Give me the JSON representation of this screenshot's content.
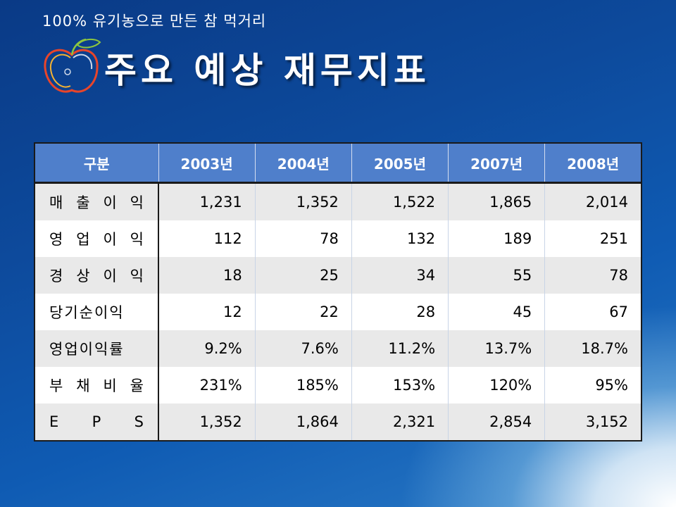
{
  "slide": {
    "subtitle": "100% 유기농으로 만든 참 먹거리",
    "title": "주요 예상 재무지표",
    "logo_icon": "apple-logo-icon"
  },
  "table": {
    "headers": [
      "구분",
      "2003년",
      "2004년",
      "2005년",
      "2007년",
      "2008년"
    ],
    "rows": [
      {
        "label": "매 출 이 익",
        "values": [
          "1,231",
          "1,352",
          "1,522",
          "1,865",
          "2,014"
        ]
      },
      {
        "label": "영 업 이 익",
        "values": [
          "112",
          "78",
          "132",
          "189",
          "251"
        ]
      },
      {
        "label": "경 상 이 익",
        "values": [
          "18",
          "25",
          "34",
          "55",
          "78"
        ]
      },
      {
        "label": "당기순이익",
        "values": [
          "12",
          "22",
          "28",
          "45",
          "67"
        ]
      },
      {
        "label": "영업이익률",
        "values": [
          "9.2%",
          "7.6%",
          "11.2%",
          "13.7%",
          "18.7%"
        ]
      },
      {
        "label": "부 채 비 율",
        "values": [
          "231%",
          "185%",
          "153%",
          "120%",
          "95%"
        ]
      },
      {
        "label": "E P S",
        "values": [
          "1,352",
          "1,864",
          "2,321",
          "2,854",
          "3,152"
        ]
      }
    ]
  },
  "colors": {
    "header_bg": "#4f7fcb",
    "row_odd": "#e9e9e9",
    "row_even": "#ffffff"
  }
}
